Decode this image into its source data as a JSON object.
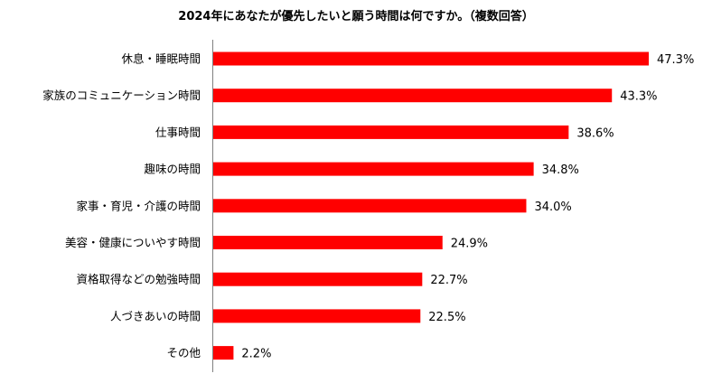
{
  "chart_data": {
    "type": "bar",
    "orientation": "horizontal",
    "title": "2024年にあなたが優先したいと願う時間は何ですか。（複数回答）",
    "categories": [
      "休息・睡眠時間",
      "家族のコミュニケーション時間",
      "仕事時間",
      "趣味の時間",
      "家事・育児・介護の時間",
      "美容・健康についやす時間",
      "資格取得などの勉強時間",
      "人づきあいの時間",
      "その他"
    ],
    "values": [
      47.3,
      43.3,
      38.6,
      34.8,
      34.0,
      24.9,
      22.7,
      22.5,
      2.2
    ],
    "value_labels": [
      "47.3%",
      "43.3%",
      "38.6%",
      "34.8%",
      "34.0%",
      "24.9%",
      "22.7%",
      "22.5%",
      "2.2%"
    ],
    "unit": "%",
    "xlim": [
      0,
      50
    ],
    "bar_color": "#ff0000",
    "grid": false,
    "legend": "none"
  }
}
